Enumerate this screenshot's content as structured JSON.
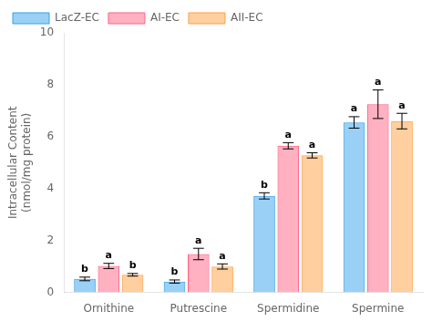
{
  "chart_data": {
    "type": "bar",
    "categories": [
      "Ornithine",
      "Putrescine",
      "Spermidine",
      "Spermine"
    ],
    "series": [
      {
        "name": "LacZ-EC",
        "values": [
          0.52,
          0.42,
          3.72,
          6.55
        ],
        "errors": [
          0.07,
          0.06,
          0.12,
          0.22
        ],
        "annotations": [
          "b",
          "b",
          "b",
          "a"
        ]
      },
      {
        "name": "AI-EC",
        "values": [
          1.02,
          1.48,
          5.65,
          7.25
        ],
        "errors": [
          0.1,
          0.22,
          0.12,
          0.55
        ],
        "annotations": [
          "a",
          "a",
          "a",
          "a"
        ]
      },
      {
        "name": "AII-EC",
        "values": [
          0.68,
          1.0,
          5.28,
          6.6
        ],
        "errors": [
          0.05,
          0.1,
          0.1,
          0.3
        ],
        "annotations": [
          "b",
          "a",
          "a",
          "a"
        ]
      }
    ],
    "ylabel": "Intracellular Content\n(nmol/mg protein)",
    "ylim": [
      0,
      10
    ],
    "yticks": [
      0,
      2,
      4,
      6,
      8,
      10
    ],
    "legend": "upper left",
    "grid": false
  }
}
